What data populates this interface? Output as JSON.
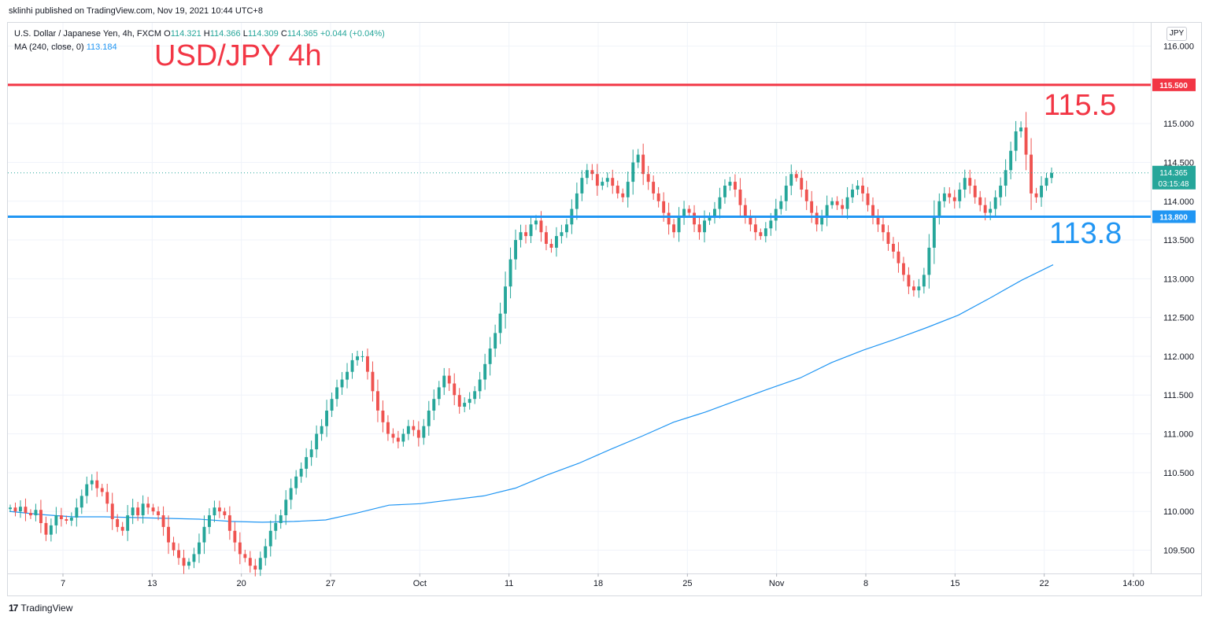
{
  "header": {
    "published": "sklinhi published on TradingView.com, Nov 19, 2021 10:44 UTC+8"
  },
  "legend": {
    "symbol": "U.S. Dollar / Japanese Yen, 4h, FXCM",
    "o_label": "O",
    "o_value": "114.321",
    "h_label": "H",
    "h_value": "114.366",
    "l_label": "L",
    "l_value": "114.309",
    "c_label": "C",
    "c_value": "114.365",
    "change": "+0.044 (+0.04%)",
    "ma_label": "MA (240, close, 0)",
    "ma_value": "113.184"
  },
  "annotations": {
    "title": "USD/JPY 4h",
    "high_level": "115.5",
    "low_level": "113.8"
  },
  "currency_button": "JPY",
  "footer": {
    "brand": "TradingView",
    "logo": "17"
  },
  "colors": {
    "up": "#26a69a",
    "down": "#ef5350",
    "resistance": "#f23645",
    "support": "#2196f3",
    "ma": "#2196f3",
    "grid": "#f0f3fa"
  },
  "chart_data": {
    "type": "candlestick",
    "y_axis": {
      "min": 109.2,
      "max": 116.3,
      "ticks": [
        "116.000",
        "115.500",
        "115.000",
        "114.500",
        "114.000",
        "113.500",
        "113.000",
        "112.500",
        "112.000",
        "111.500",
        "111.000",
        "110.500",
        "110.000",
        "109.500"
      ]
    },
    "x_ticks": [
      "7",
      "13",
      "20",
      "27",
      "Oct",
      "11",
      "18",
      "25",
      "Nov",
      "8",
      "15",
      "22",
      "14:00"
    ],
    "horizontal_lines": [
      {
        "price": 115.5,
        "label": "115.500",
        "color": "#f23645"
      },
      {
        "price": 113.8,
        "label": "113.800",
        "color": "#2196f3"
      }
    ],
    "last_price": {
      "price": 114.365,
      "label": "114.365",
      "countdown": "03:15:48"
    },
    "ma_series": [
      110.0,
      109.96,
      109.93,
      109.93,
      109.92,
      109.91,
      109.9,
      109.87,
      109.86,
      109.87,
      109.89,
      109.98,
      110.08,
      110.1,
      110.15,
      110.2,
      110.3,
      110.47,
      110.62,
      110.8,
      110.97,
      111.15,
      111.28,
      111.43,
      111.58,
      111.72,
      111.92,
      112.08,
      112.22,
      112.37,
      112.53,
      112.75,
      112.98,
      113.18
    ],
    "closes": [
      110.05,
      110.0,
      110.06,
      109.98,
      109.95,
      110.02,
      109.85,
      109.7,
      109.82,
      109.95,
      109.9,
      109.88,
      109.92,
      110.05,
      110.2,
      110.35,
      110.4,
      110.3,
      110.25,
      110.1,
      109.9,
      109.8,
      109.75,
      109.95,
      110.05,
      109.95,
      110.1,
      110.05,
      110.0,
      109.95,
      109.8,
      109.6,
      109.5,
      109.4,
      109.3,
      109.35,
      109.45,
      109.6,
      109.8,
      109.95,
      110.05,
      110.0,
      109.95,
      109.75,
      109.6,
      109.45,
      109.4,
      109.3,
      109.25,
      109.4,
      109.55,
      109.75,
      109.85,
      109.95,
      110.15,
      110.3,
      110.45,
      110.55,
      110.7,
      110.8,
      111.0,
      111.1,
      111.3,
      111.45,
      111.6,
      111.7,
      111.8,
      111.95,
      112.0,
      112.0,
      111.8,
      111.55,
      111.3,
      111.15,
      111.0,
      110.95,
      110.9,
      111.0,
      111.1,
      111.05,
      110.95,
      111.1,
      111.3,
      111.45,
      111.6,
      111.75,
      111.65,
      111.5,
      111.35,
      111.4,
      111.45,
      111.55,
      111.7,
      111.9,
      112.1,
      112.3,
      112.55,
      112.9,
      113.25,
      113.5,
      113.6,
      113.55,
      113.7,
      113.75,
      113.6,
      113.45,
      113.4,
      113.55,
      113.6,
      113.7,
      113.9,
      114.1,
      114.3,
      114.4,
      114.35,
      114.2,
      114.25,
      114.3,
      114.2,
      114.1,
      114.05,
      114.25,
      114.5,
      114.6,
      114.35,
      114.25,
      114.1,
      114.0,
      113.85,
      113.7,
      113.6,
      113.8,
      113.9,
      113.85,
      113.7,
      113.6,
      113.75,
      113.8,
      113.9,
      114.05,
      114.2,
      114.25,
      114.15,
      113.95,
      113.8,
      113.7,
      113.6,
      113.55,
      113.65,
      113.75,
      113.9,
      114.0,
      114.2,
      114.35,
      114.3,
      114.15,
      114.0,
      113.85,
      113.7,
      113.8,
      113.95,
      114.0,
      113.95,
      113.9,
      114.05,
      114.15,
      114.2,
      114.1,
      113.95,
      113.8,
      113.7,
      113.6,
      113.45,
      113.35,
      113.2,
      113.05,
      112.9,
      112.85,
      112.9,
      113.05,
      113.4,
      113.8,
      114.0,
      114.1,
      114.05,
      114.0,
      114.15,
      114.3,
      114.2,
      114.05,
      113.95,
      113.85,
      113.9,
      114.05,
      114.2,
      114.4,
      114.65,
      114.9,
      114.95,
      114.6,
      114.1,
      114.05,
      114.2,
      114.3,
      114.365
    ]
  }
}
